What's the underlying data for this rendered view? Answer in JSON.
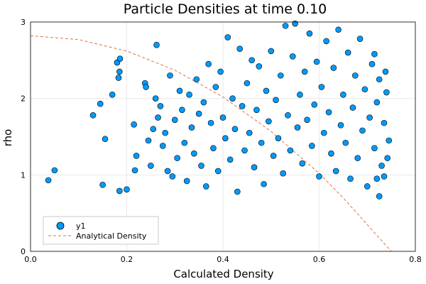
{
  "chart_data": {
    "type": "scatter",
    "title": "Particle Densities at time 0.10",
    "xlabel": "Calculated Density",
    "ylabel": "rho",
    "xlim": [
      0,
      0.8
    ],
    "ylim": [
      0,
      3
    ],
    "xticks": [
      "0.0",
      "0.2",
      "0.4",
      "0.6",
      "0.8"
    ],
    "yticks": [
      "0",
      "1",
      "2",
      "3"
    ],
    "grid": true,
    "legend_position": "bottom-left",
    "colors": {
      "scatter": "#009AFA",
      "scatter_edge": "#000000",
      "analytical": "#E26F46",
      "grid": "#E5E5E5"
    },
    "series": [
      {
        "name": "y1",
        "kind": "scatter",
        "points": [
          [
            0.037,
            0.93
          ],
          [
            0.05,
            1.06
          ],
          [
            0.13,
            1.78
          ],
          [
            0.145,
            1.93
          ],
          [
            0.15,
            0.87
          ],
          [
            0.155,
            1.47
          ],
          [
            0.17,
            2.05
          ],
          [
            0.18,
            2.47
          ],
          [
            0.183,
            2.27
          ],
          [
            0.185,
            2.35
          ],
          [
            0.185,
            0.79
          ],
          [
            0.186,
            2.52
          ],
          [
            0.2,
            0.81
          ],
          [
            0.215,
            1.66
          ],
          [
            0.217,
            1.06
          ],
          [
            0.22,
            1.25
          ],
          [
            0.238,
            2.2
          ],
          [
            0.24,
            2.15
          ],
          [
            0.245,
            1.45
          ],
          [
            0.25,
            1.12
          ],
          [
            0.255,
            1.6
          ],
          [
            0.26,
            2.0
          ],
          [
            0.262,
            2.7
          ],
          [
            0.265,
            1.75
          ],
          [
            0.27,
            1.9
          ],
          [
            0.275,
            1.38
          ],
          [
            0.28,
            1.55
          ],
          [
            0.285,
            1.05
          ],
          [
            0.29,
            2.3
          ],
          [
            0.295,
            0.98
          ],
          [
            0.3,
            1.72
          ],
          [
            0.305,
            1.22
          ],
          [
            0.31,
            2.1
          ],
          [
            0.315,
            1.85
          ],
          [
            0.32,
            1.42
          ],
          [
            0.325,
            0.92
          ],
          [
            0.33,
            2.05
          ],
          [
            0.335,
            1.62
          ],
          [
            0.34,
            1.28
          ],
          [
            0.345,
            2.25
          ],
          [
            0.35,
            1.8
          ],
          [
            0.355,
            1.12
          ],
          [
            0.36,
            1.95
          ],
          [
            0.365,
            0.85
          ],
          [
            0.37,
            2.45
          ],
          [
            0.375,
            1.68
          ],
          [
            0.38,
            1.35
          ],
          [
            0.385,
            2.15
          ],
          [
            0.39,
            1.05
          ],
          [
            0.395,
            2.35
          ],
          [
            0.4,
            1.75
          ],
          [
            0.405,
            1.48
          ],
          [
            0.41,
            2.8
          ],
          [
            0.415,
            1.2
          ],
          [
            0.42,
            2.0
          ],
          [
            0.425,
            1.6
          ],
          [
            0.43,
            0.78
          ],
          [
            0.435,
            2.65
          ],
          [
            0.44,
            1.9
          ],
          [
            0.445,
            1.32
          ],
          [
            0.45,
            2.2
          ],
          [
            0.455,
            1.55
          ],
          [
            0.46,
            2.5
          ],
          [
            0.465,
            1.1
          ],
          [
            0.47,
            1.85
          ],
          [
            0.475,
            2.42
          ],
          [
            0.48,
            1.42
          ],
          [
            0.485,
            0.88
          ],
          [
            0.49,
            2.1
          ],
          [
            0.495,
            1.7
          ],
          [
            0.5,
            2.62
          ],
          [
            0.505,
            1.25
          ],
          [
            0.51,
            1.98
          ],
          [
            0.515,
            1.48
          ],
          [
            0.52,
            2.3
          ],
          [
            0.525,
            1.02
          ],
          [
            0.53,
            2.95
          ],
          [
            0.535,
            1.78
          ],
          [
            0.54,
            1.32
          ],
          [
            0.545,
            2.55
          ],
          [
            0.55,
            2.98
          ],
          [
            0.555,
            1.62
          ],
          [
            0.56,
            2.05
          ],
          [
            0.565,
            1.15
          ],
          [
            0.57,
            2.35
          ],
          [
            0.575,
            1.72
          ],
          [
            0.58,
            2.85
          ],
          [
            0.585,
            1.38
          ],
          [
            0.59,
            1.92
          ],
          [
            0.595,
            2.48
          ],
          [
            0.6,
            0.98
          ],
          [
            0.605,
            2.15
          ],
          [
            0.61,
            1.55
          ],
          [
            0.615,
            2.75
          ],
          [
            0.62,
            1.82
          ],
          [
            0.625,
            1.28
          ],
          [
            0.63,
            2.4
          ],
          [
            0.635,
            1.05
          ],
          [
            0.64,
            2.9
          ],
          [
            0.645,
            1.65
          ],
          [
            0.65,
            2.05
          ],
          [
            0.655,
            1.42
          ],
          [
            0.66,
            2.6
          ],
          [
            0.665,
            0.95
          ],
          [
            0.67,
            1.88
          ],
          [
            0.675,
            2.3
          ],
          [
            0.68,
            1.22
          ],
          [
            0.685,
            2.78
          ],
          [
            0.69,
            1.58
          ],
          [
            0.695,
            2.12
          ],
          [
            0.7,
            0.85
          ],
          [
            0.705,
            1.75
          ],
          [
            0.71,
            2.45
          ],
          [
            0.715,
            1.35
          ],
          [
            0.72,
            1.95
          ],
          [
            0.725,
            2.25
          ],
          [
            0.73,
            1.12
          ],
          [
            0.735,
            1.68
          ],
          [
            0.74,
            2.08
          ],
          [
            0.745,
            1.45
          ],
          [
            0.725,
            0.72
          ],
          [
            0.72,
            0.95
          ],
          [
            0.715,
            2.58
          ],
          [
            0.735,
            0.98
          ],
          [
            0.742,
            1.22
          ],
          [
            0.738,
            2.35
          ]
        ]
      },
      {
        "name": "Analytical Density",
        "kind": "line",
        "style": "dashed",
        "x": [
          0.0,
          0.1,
          0.2,
          0.3,
          0.4,
          0.5,
          0.6,
          0.65,
          0.7,
          0.75
        ],
        "y": [
          2.82,
          2.77,
          2.62,
          2.37,
          2.02,
          1.57,
          1.02,
          0.7,
          0.35,
          0.0
        ]
      }
    ]
  }
}
